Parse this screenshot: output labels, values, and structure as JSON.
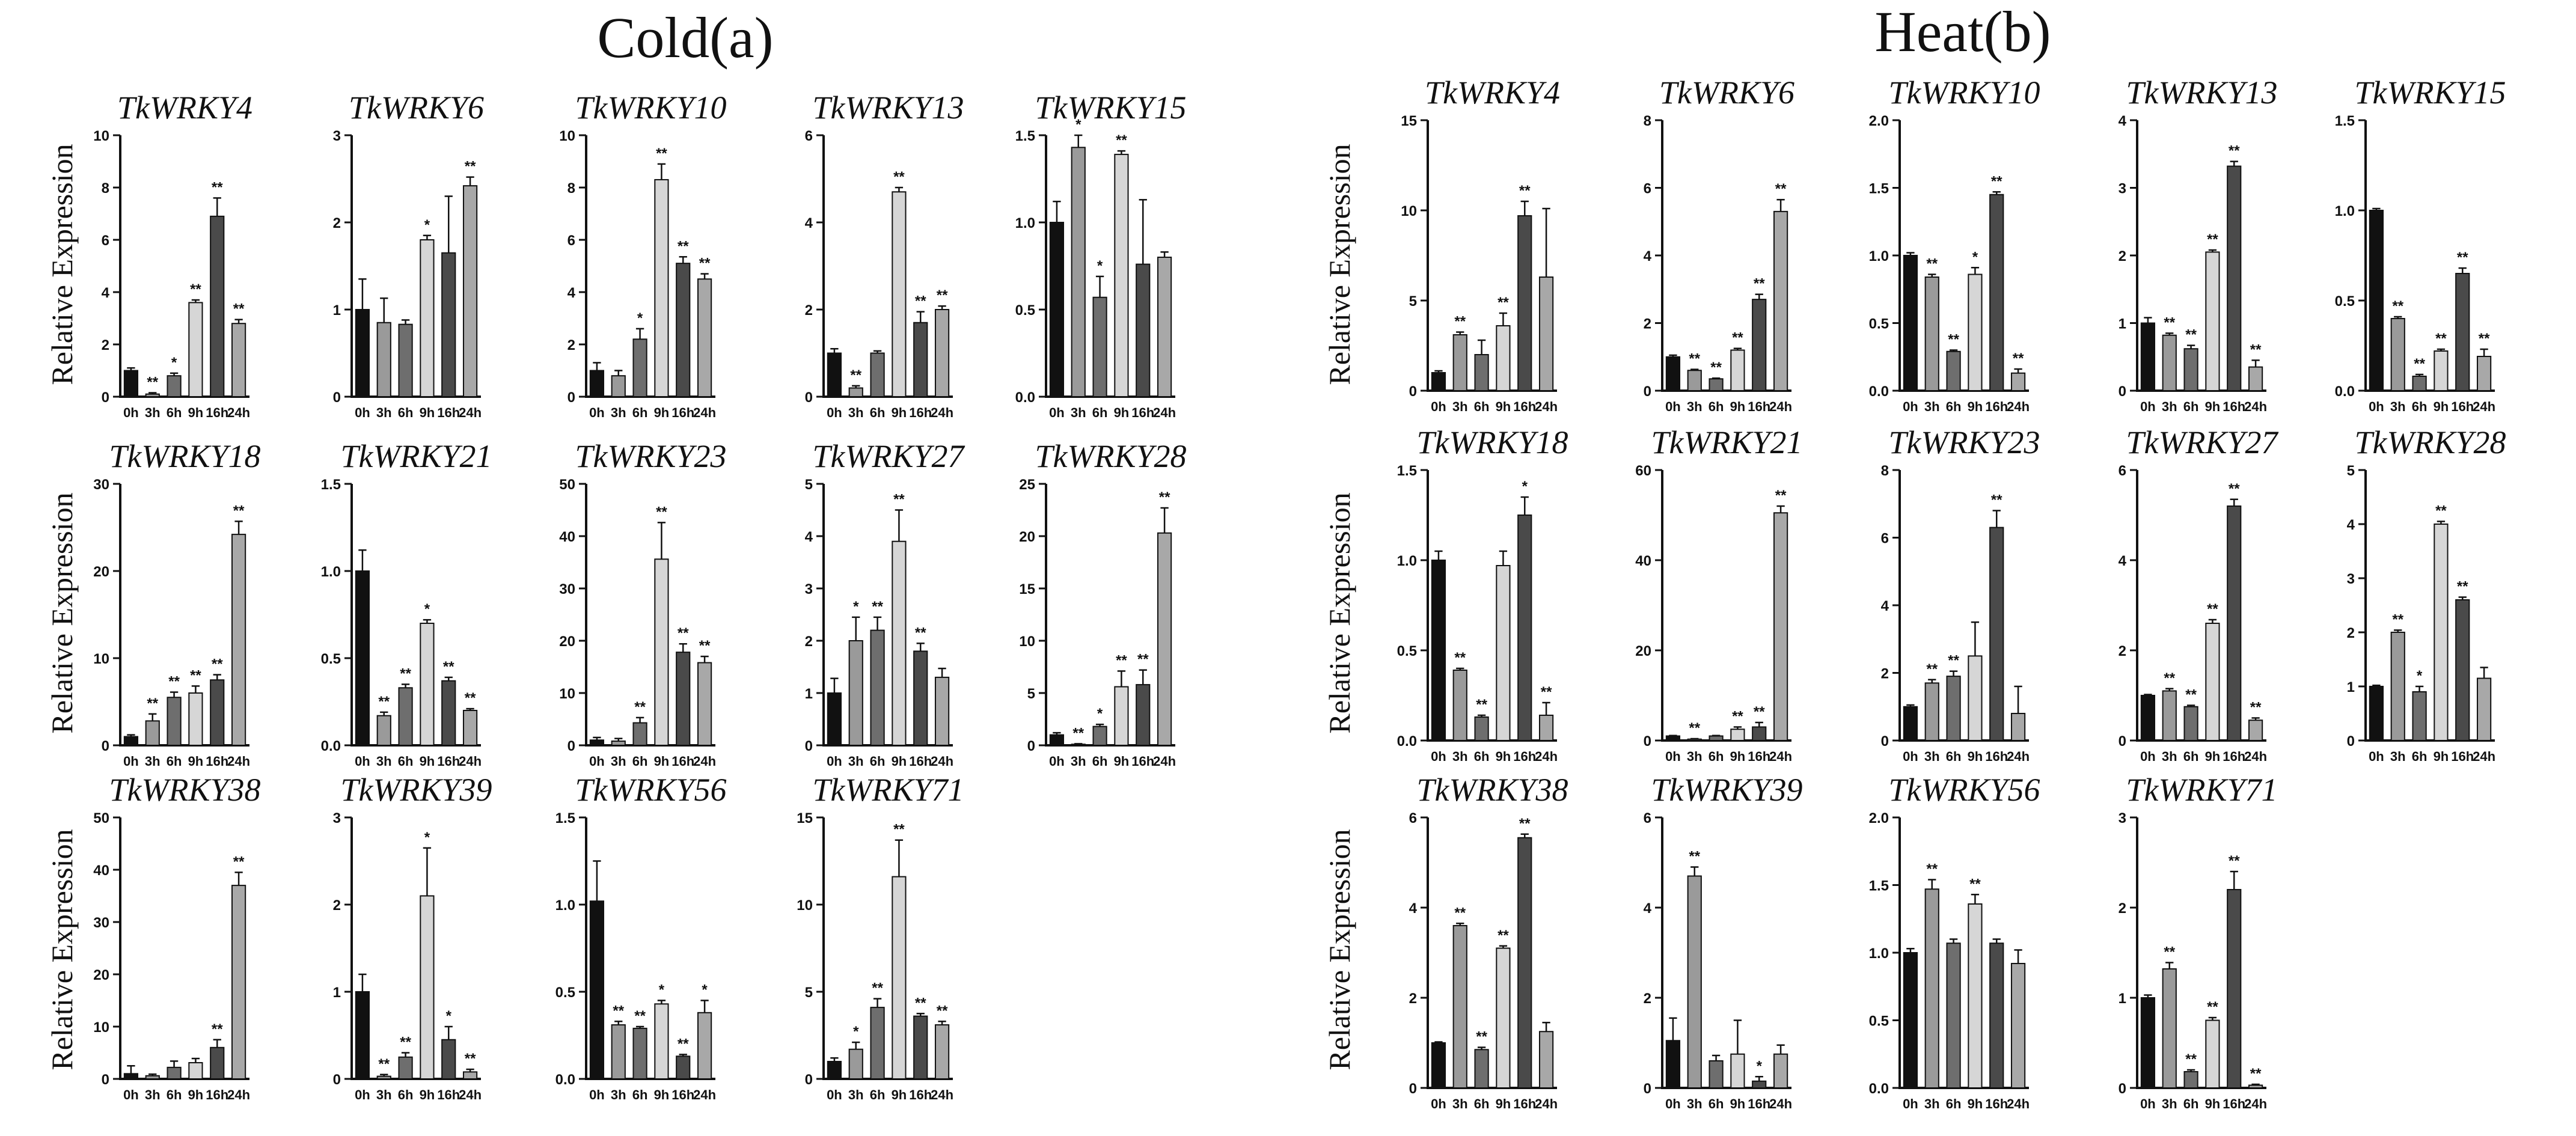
{
  "colors": {
    "bar_fills": [
      "#111111",
      "#9a9a9a",
      "#6e6e6e",
      "#d6d6d6",
      "#4a4a4a",
      "#a8a8a8"
    ],
    "axis": "#111111",
    "text": "#111111"
  },
  "panels": [
    {
      "title": "Cold(a)",
      "ylabel": "Relative Expression",
      "timepoints": [
        "0h",
        "3h",
        "6h",
        "9h",
        "16h",
        "24h"
      ],
      "charts": [
        {
          "gene": "TkWRKY4",
          "ylim": [
            0,
            10
          ],
          "yticks": [
            "0",
            "2",
            "4",
            "6",
            "8",
            "10"
          ],
          "values": [
            1.0,
            0.1,
            0.8,
            3.6,
            6.9,
            2.8
          ],
          "errors": [
            0.1,
            0.05,
            0.1,
            0.1,
            0.7,
            0.15
          ],
          "sig": [
            "",
            "**",
            "*",
            "**",
            "**",
            "**"
          ]
        },
        {
          "gene": "TkWRKY6",
          "ylim": [
            0,
            3
          ],
          "yticks": [
            "0",
            "1",
            "2",
            "3"
          ],
          "values": [
            1.0,
            0.85,
            0.83,
            1.8,
            1.65,
            2.42
          ],
          "errors": [
            0.35,
            0.28,
            0.05,
            0.05,
            0.65,
            0.1
          ],
          "sig": [
            "",
            "",
            "",
            "*",
            "",
            "**"
          ]
        },
        {
          "gene": "TkWRKY10",
          "ylim": [
            0,
            10
          ],
          "yticks": [
            "0",
            "2",
            "4",
            "6",
            "8",
            "10"
          ],
          "values": [
            1.0,
            0.8,
            2.2,
            8.3,
            5.1,
            4.5
          ],
          "errors": [
            0.3,
            0.2,
            0.4,
            0.6,
            0.25,
            0.2
          ],
          "sig": [
            "",
            "",
            "*",
            "**",
            "**",
            "**"
          ]
        },
        {
          "gene": "TkWRKY13",
          "ylim": [
            0,
            6
          ],
          "yticks": [
            "0",
            "2",
            "4",
            "6"
          ],
          "values": [
            1.0,
            0.2,
            1.0,
            4.7,
            1.7,
            2.0
          ],
          "errors": [
            0.1,
            0.05,
            0.05,
            0.1,
            0.25,
            0.08
          ],
          "sig": [
            "",
            "**",
            "",
            "**",
            "**",
            "**"
          ]
        },
        {
          "gene": "TkWRKY15",
          "ylim": [
            0,
            1.5
          ],
          "yticks": [
            "0.0",
            "0.5",
            "1.0",
            "1.5"
          ],
          "values": [
            1.0,
            1.43,
            0.57,
            1.39,
            0.76,
            0.8
          ],
          "errors": [
            0.12,
            0.22,
            0.12,
            0.02,
            0.37,
            0.03
          ],
          "sig": [
            "",
            "*",
            "*",
            "**",
            "",
            ""
          ]
        },
        {
          "gene": "TkWRKY18",
          "ylim": [
            0,
            30
          ],
          "yticks": [
            "0",
            "10",
            "20",
            "30"
          ],
          "values": [
            1.0,
            2.8,
            5.5,
            6.0,
            7.5,
            24.2
          ],
          "errors": [
            0.2,
            0.8,
            0.6,
            0.8,
            0.6,
            1.5
          ],
          "sig": [
            "",
            "**",
            "**",
            "**",
            "**",
            "**"
          ]
        },
        {
          "gene": "TkWRKY21",
          "ylim": [
            0,
            1.5
          ],
          "yticks": [
            "0.0",
            "0.5",
            "1.0",
            "1.5"
          ],
          "values": [
            1.0,
            0.17,
            0.33,
            0.7,
            0.37,
            0.2
          ],
          "errors": [
            0.12,
            0.02,
            0.02,
            0.02,
            0.02,
            0.01
          ],
          "sig": [
            "",
            "**",
            "**",
            "*",
            "**",
            "**"
          ]
        },
        {
          "gene": "TkWRKY23",
          "ylim": [
            0,
            50
          ],
          "yticks": [
            "0",
            "10",
            "20",
            "30",
            "40",
            "50"
          ],
          "values": [
            1.0,
            0.8,
            4.3,
            35.6,
            17.8,
            15.8
          ],
          "errors": [
            0.5,
            0.5,
            1.0,
            7.0,
            1.6,
            1.2
          ],
          "sig": [
            "",
            "",
            "**",
            "**",
            "**",
            "**"
          ]
        },
        {
          "gene": "TkWRKY27",
          "ylim": [
            0,
            5
          ],
          "yticks": [
            "0",
            "1",
            "2",
            "3",
            "4",
            "5"
          ],
          "values": [
            1.0,
            2.0,
            2.2,
            3.9,
            1.8,
            1.3
          ],
          "errors": [
            0.28,
            0.45,
            0.25,
            0.6,
            0.15,
            0.17
          ],
          "sig": [
            "",
            "*",
            "**",
            "**",
            "**",
            ""
          ]
        },
        {
          "gene": "TkWRKY28",
          "ylim": [
            0,
            25
          ],
          "yticks": [
            "0",
            "5",
            "10",
            "15",
            "20",
            "25"
          ],
          "values": [
            1.0,
            0.1,
            1.8,
            5.6,
            5.8,
            20.3
          ],
          "errors": [
            0.2,
            0.05,
            0.2,
            1.5,
            1.4,
            2.4
          ],
          "sig": [
            "",
            "**",
            "*",
            "**",
            "**",
            "**"
          ]
        },
        {
          "gene": "TkWRKY38",
          "ylim": [
            0,
            50
          ],
          "yticks": [
            "0",
            "10",
            "20",
            "30",
            "40",
            "50"
          ],
          "values": [
            1.0,
            0.6,
            2.2,
            3.1,
            6.0,
            37.0
          ],
          "errors": [
            1.5,
            0.3,
            1.2,
            0.8,
            1.5,
            2.5
          ],
          "sig": [
            "",
            "",
            "",
            "",
            "**",
            "**"
          ]
        },
        {
          "gene": "TkWRKY39",
          "ylim": [
            0,
            3
          ],
          "yticks": [
            "0",
            "1",
            "2",
            "3"
          ],
          "values": [
            1.0,
            0.03,
            0.25,
            2.1,
            0.45,
            0.08
          ],
          "errors": [
            0.2,
            0.02,
            0.05,
            0.55,
            0.15,
            0.03
          ],
          "sig": [
            "",
            "**",
            "**",
            "*",
            "*",
            "**"
          ]
        },
        {
          "gene": "TkWRKY56",
          "ylim": [
            0,
            1.5
          ],
          "yticks": [
            "0.0",
            "0.5",
            "1.0",
            "1.5"
          ],
          "values": [
            1.02,
            0.31,
            0.29,
            0.43,
            0.13,
            0.38
          ],
          "errors": [
            0.23,
            0.02,
            0.01,
            0.02,
            0.01,
            0.07
          ],
          "sig": [
            "",
            "**",
            "**",
            "*",
            "**",
            "*"
          ]
        },
        {
          "gene": "TkWRKY71",
          "ylim": [
            0,
            15
          ],
          "yticks": [
            "0",
            "5",
            "10",
            "15"
          ],
          "values": [
            1.0,
            1.7,
            4.1,
            11.6,
            3.6,
            3.1
          ],
          "errors": [
            0.2,
            0.4,
            0.5,
            2.1,
            0.15,
            0.2
          ],
          "sig": [
            "",
            "*",
            "**",
            "**",
            "**",
            "**"
          ]
        }
      ]
    },
    {
      "title": "Heat(b)",
      "ylabel": "Relative Expression",
      "timepoints": [
        "0h",
        "3h",
        "6h",
        "9h",
        "16h",
        "24h"
      ],
      "charts": [
        {
          "gene": "TkWRKY4",
          "ylim": [
            0,
            15
          ],
          "yticks": [
            "0",
            "5",
            "10",
            "15"
          ],
          "values": [
            1.0,
            3.1,
            2.0,
            3.6,
            9.7,
            6.3
          ],
          "errors": [
            0.1,
            0.15,
            0.8,
            0.7,
            0.8,
            3.8
          ],
          "sig": [
            "",
            "**",
            "",
            "**",
            "**",
            ""
          ]
        },
        {
          "gene": "TkWRKY6",
          "ylim": [
            0,
            8
          ],
          "yticks": [
            "0",
            "2",
            "4",
            "6",
            "8"
          ],
          "values": [
            1.0,
            0.6,
            0.35,
            1.2,
            2.7,
            5.3
          ],
          "errors": [
            0.05,
            0.03,
            0.02,
            0.05,
            0.15,
            0.35
          ],
          "sig": [
            "",
            "**",
            "**",
            "**",
            "**",
            "**"
          ]
        },
        {
          "gene": "TkWRKY10",
          "ylim": [
            0,
            2.0
          ],
          "yticks": [
            "0.0",
            "0.5",
            "1.0",
            "1.5",
            "2.0"
          ],
          "values": [
            1.0,
            0.84,
            0.29,
            0.86,
            1.45,
            0.13
          ],
          "errors": [
            0.02,
            0.02,
            0.01,
            0.05,
            0.02,
            0.03
          ],
          "sig": [
            "",
            "**",
            "**",
            "*",
            "**",
            "**"
          ]
        },
        {
          "gene": "TkWRKY13",
          "ylim": [
            0,
            4
          ],
          "yticks": [
            "0",
            "1",
            "2",
            "3",
            "4"
          ],
          "values": [
            1.0,
            0.82,
            0.62,
            2.05,
            3.32,
            0.35
          ],
          "errors": [
            0.08,
            0.03,
            0.05,
            0.03,
            0.07,
            0.1
          ],
          "sig": [
            "",
            "**",
            "**",
            "**",
            "**",
            "**"
          ]
        },
        {
          "gene": "TkWRKY15",
          "ylim": [
            0,
            1.5
          ],
          "yticks": [
            "0.0",
            "0.5",
            "1.0",
            "1.5"
          ],
          "values": [
            1.0,
            0.4,
            0.08,
            0.22,
            0.65,
            0.19
          ],
          "errors": [
            0.01,
            0.01,
            0.01,
            0.01,
            0.03,
            0.04
          ],
          "sig": [
            "",
            "**",
            "**",
            "**",
            "**",
            "**"
          ]
        },
        {
          "gene": "TkWRKY18",
          "ylim": [
            0,
            1.5
          ],
          "yticks": [
            "0.0",
            "0.5",
            "1.0",
            "1.5"
          ],
          "values": [
            1.0,
            0.39,
            0.13,
            0.97,
            1.25,
            0.14
          ],
          "errors": [
            0.05,
            0.01,
            0.01,
            0.08,
            0.1,
            0.07
          ],
          "sig": [
            "",
            "**",
            "**",
            "",
            "*",
            "**"
          ]
        },
        {
          "gene": "TkWRKY21",
          "ylim": [
            0,
            60
          ],
          "yticks": [
            "0",
            "20",
            "40",
            "60"
          ],
          "values": [
            1.0,
            0.3,
            1.0,
            2.5,
            3.0,
            50.5
          ],
          "errors": [
            0.1,
            0.1,
            0.1,
            0.5,
            1.0,
            1.5
          ],
          "sig": [
            "",
            "**",
            "",
            "**",
            "**",
            "**"
          ]
        },
        {
          "gene": "TkWRKY23",
          "ylim": [
            0,
            8
          ],
          "yticks": [
            "0",
            "2",
            "4",
            "6",
            "8"
          ],
          "values": [
            1.0,
            1.7,
            1.9,
            2.5,
            6.3,
            0.8
          ],
          "errors": [
            0.05,
            0.1,
            0.15,
            1.0,
            0.5,
            0.8
          ],
          "sig": [
            "",
            "**",
            "**",
            "",
            "**",
            ""
          ]
        },
        {
          "gene": "TkWRKY27",
          "ylim": [
            0,
            6
          ],
          "yticks": [
            "0",
            "2",
            "4",
            "6"
          ],
          "values": [
            1.0,
            1.1,
            0.75,
            2.6,
            5.2,
            0.45
          ],
          "errors": [
            0.02,
            0.05,
            0.03,
            0.08,
            0.15,
            0.05
          ],
          "sig": [
            "",
            "**",
            "**",
            "**",
            "**",
            "**"
          ]
        },
        {
          "gene": "TkWRKY28",
          "ylim": [
            0,
            5
          ],
          "yticks": [
            "0",
            "1",
            "2",
            "3",
            "4",
            "5"
          ],
          "values": [
            1.0,
            2.0,
            0.9,
            4.0,
            2.6,
            1.15
          ],
          "errors": [
            0.02,
            0.04,
            0.1,
            0.05,
            0.05,
            0.2
          ],
          "sig": [
            "",
            "**",
            "*",
            "**",
            "**",
            ""
          ]
        },
        {
          "gene": "TkWRKY38",
          "ylim": [
            0,
            6
          ],
          "yticks": [
            "0",
            "2",
            "4",
            "6"
          ],
          "values": [
            1.0,
            3.6,
            0.85,
            3.1,
            5.55,
            1.25
          ],
          "errors": [
            0.02,
            0.05,
            0.05,
            0.05,
            0.08,
            0.2
          ],
          "sig": [
            "",
            "**",
            "**",
            "**",
            "**",
            ""
          ]
        },
        {
          "gene": "TkWRKY39",
          "ylim": [
            0,
            6
          ],
          "yticks": [
            "0",
            "2",
            "4",
            "6"
          ],
          "values": [
            1.05,
            4.7,
            0.6,
            0.75,
            0.15,
            0.75
          ],
          "errors": [
            0.5,
            0.2,
            0.12,
            0.75,
            0.1,
            0.2
          ],
          "sig": [
            "",
            "**",
            "",
            "",
            "*",
            ""
          ]
        },
        {
          "gene": "TkWRKY56",
          "ylim": [
            0,
            2.0
          ],
          "yticks": [
            "0.0",
            "0.5",
            "1.0",
            "1.5",
            "2.0"
          ],
          "values": [
            1.0,
            1.47,
            1.07,
            1.36,
            1.07,
            0.92
          ],
          "errors": [
            0.03,
            0.07,
            0.03,
            0.07,
            0.03,
            0.1
          ],
          "sig": [
            "",
            "**",
            "",
            "**",
            "",
            ""
          ]
        },
        {
          "gene": "TkWRKY71",
          "ylim": [
            0,
            3
          ],
          "yticks": [
            "0",
            "1",
            "2",
            "3"
          ],
          "values": [
            1.0,
            1.32,
            0.18,
            0.75,
            2.2,
            0.03
          ],
          "errors": [
            0.03,
            0.07,
            0.02,
            0.03,
            0.2,
            0.01
          ],
          "sig": [
            "",
            "**",
            "**",
            "**",
            "**",
            "**"
          ]
        }
      ]
    }
  ]
}
